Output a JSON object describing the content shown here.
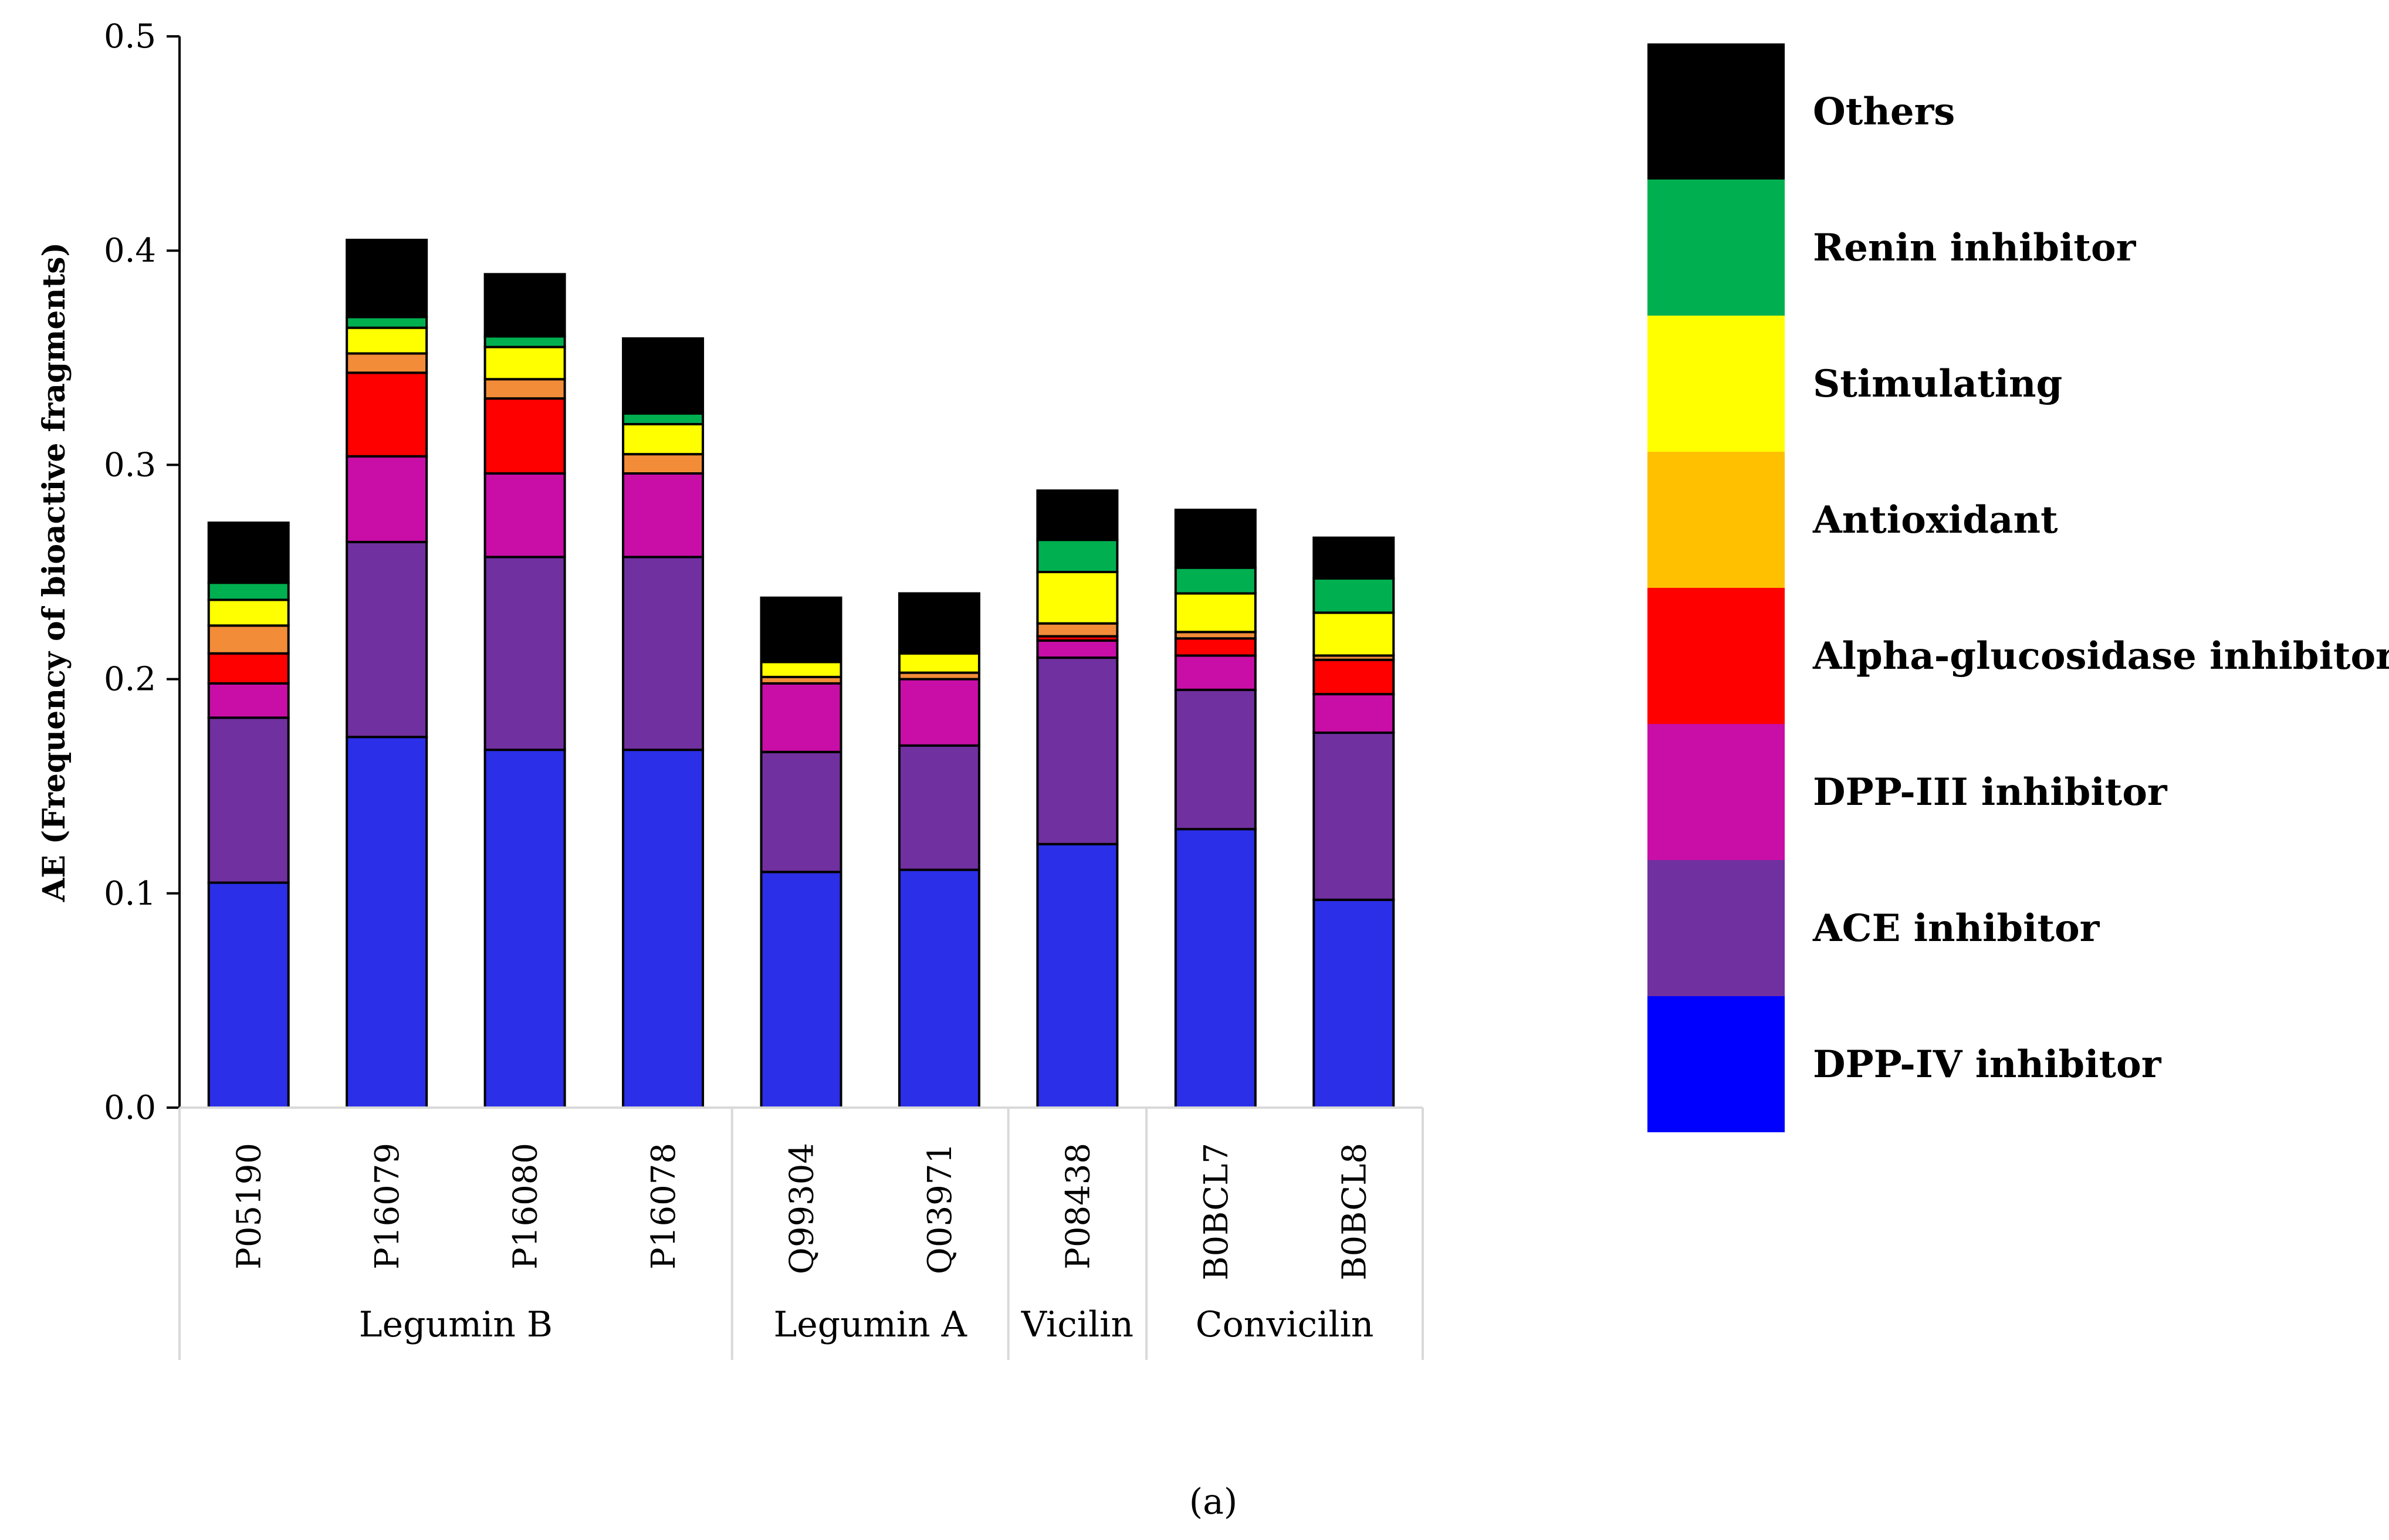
{
  "chart_data": {
    "type": "bar",
    "stacked": true,
    "ylabel": "AE (Frequency of bioactive fragments)",
    "ylim": [
      0,
      0.5
    ],
    "yticks": [
      "0.0",
      "0.1",
      "0.2",
      "0.3",
      "0.4",
      "0.5"
    ],
    "categories": [
      "P05190",
      "P16079",
      "P16080",
      "P16078",
      "Q99304",
      "Q03971",
      "P08438",
      "B0BCL7",
      "B0BCL8"
    ],
    "groups": [
      {
        "label": "Legumin B",
        "start": 0,
        "end": 3
      },
      {
        "label": "Legumin A",
        "start": 4,
        "end": 5
      },
      {
        "label": "Vicilin",
        "start": 6,
        "end": 6
      },
      {
        "label": "Convicilin",
        "start": 7,
        "end": 8
      }
    ],
    "series": [
      {
        "name": "DPP-IV inhibitor",
        "color": "#2b2fe8",
        "legend_color": "#0000ff",
        "values": [
          0.105,
          0.173,
          0.167,
          0.167,
          0.11,
          0.111,
          0.123,
          0.13,
          0.097
        ]
      },
      {
        "name": "ACE inhibitor",
        "color": "#7030a0",
        "legend_color": "#7030a0",
        "values": [
          0.077,
          0.091,
          0.09,
          0.09,
          0.056,
          0.058,
          0.087,
          0.065,
          0.078
        ]
      },
      {
        "name": "DPP-III inhibitor",
        "color": "#c90ea7",
        "legend_color": "#c90ea7",
        "values": [
          0.016,
          0.04,
          0.039,
          0.039,
          0.032,
          0.031,
          0.008,
          0.016,
          0.018
        ]
      },
      {
        "name": "Alpha-glucosidase inhibitor",
        "color": "#ff0000",
        "legend_color": "#ff0000",
        "values": [
          0.014,
          0.039,
          0.035,
          0.0,
          0.0,
          0.0,
          0.002,
          0.008,
          0.016
        ]
      },
      {
        "name": "Antioxidant",
        "color": "#f28c38",
        "legend_color": "#ffc000",
        "values": [
          0.013,
          0.009,
          0.009,
          0.009,
          0.003,
          0.003,
          0.006,
          0.003,
          0.002
        ]
      },
      {
        "name": "Stimulating",
        "color": "#ffff00",
        "legend_color": "#ffff00",
        "values": [
          0.012,
          0.012,
          0.015,
          0.014,
          0.007,
          0.009,
          0.024,
          0.018,
          0.02
        ]
      },
      {
        "name": "Renin inhibitor",
        "color": "#00b050",
        "legend_color": "#00b050",
        "values": [
          0.008,
          0.005,
          0.005,
          0.005,
          0.0,
          0.0,
          0.015,
          0.012,
          0.016
        ]
      },
      {
        "name": "Others",
        "color": "#000000",
        "legend_color": "#000000",
        "values": [
          0.028,
          0.036,
          0.029,
          0.035,
          0.03,
          0.028,
          0.023,
          0.027,
          0.019
        ]
      }
    ],
    "legend_position": "right"
  },
  "caption": "(a)"
}
